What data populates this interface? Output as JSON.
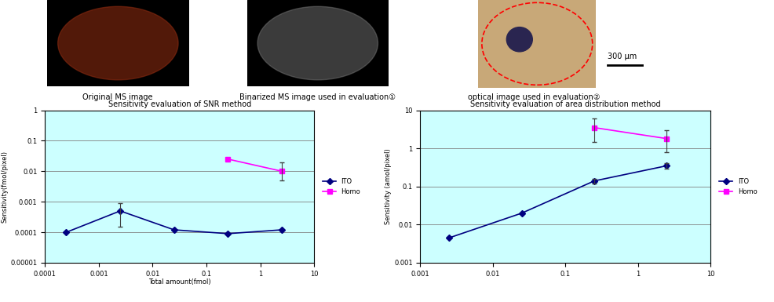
{
  "panels": [
    {
      "caption": "Original MS image"
    },
    {
      "caption": "Binarized MS image used in evaluation①"
    },
    {
      "caption": "optical image used in evaluation②",
      "scale_bar": "300 μm"
    }
  ],
  "chart_data": [
    {
      "type": "line",
      "title": "Sensitivity evaluation of SNR method",
      "x_label": "Total amount(fmol)",
      "y_label": "Sensitivity(fmol/pixel)",
      "log": true,
      "grid": true,
      "legend": "right",
      "xlim": [
        0.0001,
        10
      ],
      "xticks": [
        0.0001,
        0.001,
        0.01,
        0.1,
        1,
        10
      ],
      "ylim": [
        1e-05,
        1
      ],
      "yticks": [
        {
          "value": 1e-05,
          "label": "0.00001"
        },
        0.0001,
        0.001,
        0.01,
        0.1,
        1
      ],
      "series": [
        {
          "name": "ITO",
          "color": "#000080",
          "marker": "diamond",
          "x": [
            0.00025,
            0.0025,
            0.025,
            0.25,
            2.5
          ],
          "values": [
            0.0001,
            0.0005,
            0.00012,
            9e-05,
            0.00012
          ],
          "error_low": [
            null,
            0.00015,
            null,
            null,
            null
          ],
          "error_high": [
            null,
            0.0009,
            null,
            null,
            null
          ]
        },
        {
          "name": "Homo",
          "color": "#ff00ff",
          "marker": "square",
          "x": [
            0.25,
            2.5
          ],
          "values": [
            0.025,
            0.01
          ],
          "error_low": [
            null,
            0.005
          ],
          "error_high": [
            null,
            0.02
          ]
        }
      ]
    },
    {
      "type": "line",
      "title": "Sensitivity evaluation of area distribution method",
      "y_label": "Sensitivity (amol/pixel)",
      "log": true,
      "grid": true,
      "legend": "right",
      "xlim": [
        0.001,
        10
      ],
      "xticks": [
        0.001,
        0.01,
        0.1,
        1,
        10
      ],
      "ylim": [
        0.001,
        10
      ],
      "yticks": [
        0.001,
        0.01,
        0.1,
        1,
        10
      ],
      "series": [
        {
          "name": "ITO",
          "color": "#000080",
          "marker": "diamond",
          "x": [
            0.0025,
            0.025,
            0.25,
            2.5
          ],
          "values": [
            0.0045,
            0.02,
            0.14,
            0.35
          ],
          "error_low": [
            null,
            null,
            0.12,
            0.3
          ],
          "error_high": [
            null,
            null,
            0.16,
            0.4
          ]
        },
        {
          "name": "Homo",
          "color": "#ff00ff",
          "marker": "square",
          "x": [
            0.25,
            2.5
          ],
          "values": [
            3.5,
            1.8
          ],
          "error_low": [
            1.5,
            0.8
          ],
          "error_high": [
            6,
            3
          ]
        }
      ]
    }
  ]
}
